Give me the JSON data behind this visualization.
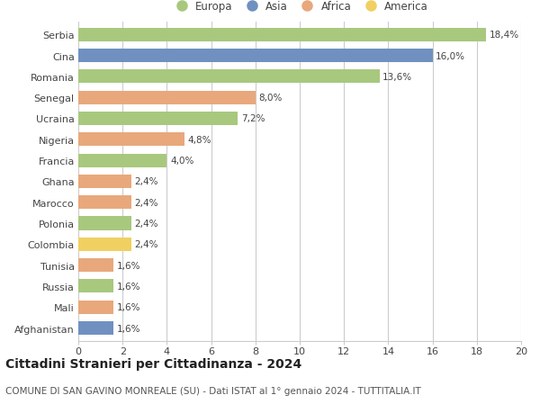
{
  "categories": [
    "Serbia",
    "Cina",
    "Romania",
    "Senegal",
    "Ucraina",
    "Nigeria",
    "Francia",
    "Ghana",
    "Marocco",
    "Polonia",
    "Colombia",
    "Tunisia",
    "Russia",
    "Mali",
    "Afghanistan"
  ],
  "values": [
    18.4,
    16.0,
    13.6,
    8.0,
    7.2,
    4.8,
    4.0,
    2.4,
    2.4,
    2.4,
    2.4,
    1.6,
    1.6,
    1.6,
    1.6
  ],
  "labels": [
    "18,4%",
    "16,0%",
    "13,6%",
    "8,0%",
    "7,2%",
    "4,8%",
    "4,0%",
    "2,4%",
    "2,4%",
    "2,4%",
    "2,4%",
    "1,6%",
    "1,6%",
    "1,6%",
    "1,6%"
  ],
  "continent": [
    "Europa",
    "Asia",
    "Europa",
    "Africa",
    "Europa",
    "Africa",
    "Europa",
    "Africa",
    "Africa",
    "Europa",
    "America",
    "Africa",
    "Europa",
    "Africa",
    "Asia"
  ],
  "colors": {
    "Europa": "#a8c87e",
    "Asia": "#7090c0",
    "Africa": "#e8a87c",
    "America": "#f0d060"
  },
  "title": "Cittadini Stranieri per Cittadinanza - 2024",
  "subtitle": "COMUNE DI SAN GAVINO MONREALE (SU) - Dati ISTAT al 1° gennaio 2024 - TUTTITALIA.IT",
  "xlim": [
    0,
    20
  ],
  "xticks": [
    0,
    2,
    4,
    6,
    8,
    10,
    12,
    14,
    16,
    18,
    20
  ],
  "bg_color": "#ffffff",
  "grid_color": "#cccccc",
  "bar_height": 0.65,
  "label_fontsize": 7.5,
  "title_fontsize": 10,
  "subtitle_fontsize": 7.5,
  "ytick_fontsize": 8,
  "xtick_fontsize": 8,
  "legend_fontsize": 8.5
}
